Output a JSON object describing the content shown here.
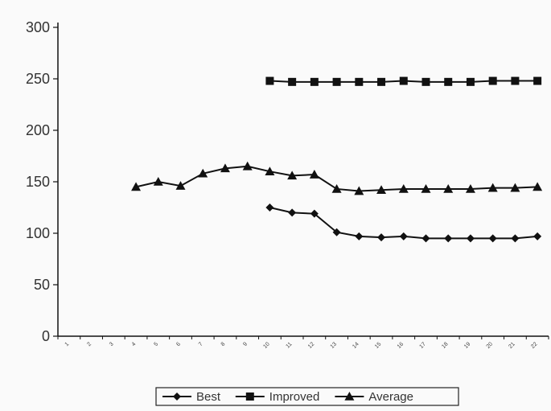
{
  "chart_data": {
    "type": "line",
    "title": "",
    "xlabel": "",
    "ylabel": "",
    "ylim": [
      0,
      300
    ],
    "yticks": [
      0,
      50,
      100,
      150,
      200,
      250,
      300
    ],
    "ytick_labels": [
      "0",
      "50",
      "100",
      "150",
      "200",
      "250",
      "300"
    ],
    "categories": [
      "1",
      "2",
      "3",
      "4",
      "5",
      "6",
      "7",
      "8",
      "9",
      "10",
      "11",
      "12",
      "13",
      "14",
      "15",
      "16",
      "17",
      "18",
      "19",
      "20",
      "21",
      "22"
    ],
    "grid": false,
    "legend_position": "bottom",
    "series": [
      {
        "name": "Best",
        "marker": "diamond",
        "values": [
          null,
          null,
          null,
          null,
          null,
          null,
          null,
          null,
          null,
          125,
          120,
          119,
          101,
          97,
          96,
          97,
          95,
          95,
          95,
          95,
          95,
          97
        ]
      },
      {
        "name": "Improved",
        "marker": "square",
        "values": [
          null,
          null,
          null,
          null,
          null,
          null,
          null,
          null,
          null,
          248,
          247,
          247,
          247,
          247,
          247,
          248,
          247,
          247,
          247,
          248,
          248,
          248
        ]
      },
      {
        "name": "Average",
        "marker": "triangle",
        "values": [
          null,
          null,
          null,
          145,
          150,
          146,
          158,
          163,
          165,
          160,
          156,
          157,
          143,
          141,
          142,
          143,
          143,
          143,
          143,
          144,
          144,
          145
        ]
      }
    ]
  }
}
